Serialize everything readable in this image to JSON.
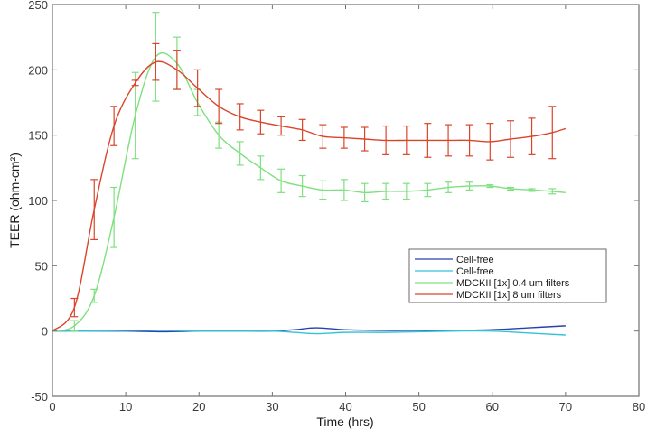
{
  "chart_data": {
    "type": "line",
    "title": "",
    "xlabel": "Time (hrs)",
    "ylabel": "TEER (ohm-cm²)",
    "xlim": [
      0,
      80
    ],
    "ylim": [
      -50,
      250
    ],
    "xticks": [
      0,
      10,
      20,
      30,
      40,
      50,
      60,
      70,
      80
    ],
    "yticks": [
      -50,
      0,
      50,
      100,
      150,
      200,
      250
    ],
    "grid": false,
    "legend_position": "inside lower right",
    "series": [
      {
        "name": "Cell-free",
        "color": "#2b3fb0",
        "error_bars": false,
        "x": [
          0,
          5,
          10,
          15,
          20,
          25,
          30,
          33,
          36,
          40,
          45,
          50,
          55,
          60,
          65,
          70
        ],
        "y": [
          0,
          0,
          0,
          -0.5,
          0,
          0,
          0,
          1,
          2.5,
          1,
          0.5,
          0.5,
          0.5,
          1,
          2.5,
          4
        ]
      },
      {
        "name": "Cell-free",
        "color": "#33c3d6",
        "error_bars": false,
        "x": [
          0,
          5,
          10,
          15,
          20,
          25,
          30,
          33,
          36,
          40,
          45,
          50,
          55,
          60,
          65,
          70
        ],
        "y": [
          0,
          0,
          0.5,
          0.5,
          0,
          0,
          0,
          -1,
          -2,
          -1,
          -1,
          -0.5,
          0,
          0,
          -1.5,
          -3
        ]
      },
      {
        "name": "MDCKII [1x] 0.4 um filters",
        "color": "#7fe07f",
        "error_bars": true,
        "x": [
          0,
          3,
          5.7,
          8.4,
          11.3,
          14.1,
          17,
          19.8,
          22.7,
          25.6,
          28.4,
          31.2,
          34.1,
          36.9,
          39.8,
          42.6,
          45.5,
          48.3,
          51.2,
          54,
          56.9,
          59.7,
          62.5,
          65.4,
          68.2,
          70
        ],
        "y": [
          0,
          4,
          27,
          87,
          165,
          210,
          205,
          175,
          150,
          136,
          125,
          115,
          111,
          108,
          108,
          106,
          107,
          107,
          108,
          110,
          111,
          111,
          109,
          108,
          107,
          106
        ],
        "err": [
          0,
          4,
          5,
          23,
          33,
          34,
          20,
          10,
          10,
          9,
          9,
          9,
          8,
          7,
          8,
          7,
          6,
          6,
          5,
          4,
          3,
          1,
          1,
          1,
          2,
          0
        ]
      },
      {
        "name": "MDCKII [1x] 8 um filters",
        "color": "#d9452b",
        "error_bars": true,
        "x": [
          0,
          3,
          5.7,
          8.4,
          11.3,
          14.1,
          17,
          19.8,
          22.7,
          25.6,
          28.4,
          31.2,
          34.1,
          36.9,
          39.8,
          42.6,
          45.5,
          48.3,
          51.2,
          54,
          56.9,
          59.7,
          62.5,
          65.4,
          68.2,
          70
        ],
        "y": [
          0,
          18,
          93,
          157,
          190,
          206,
          200,
          186,
          172,
          164,
          160,
          157,
          154,
          149,
          148,
          147,
          146,
          146,
          146,
          146,
          146,
          145,
          147,
          149,
          152,
          155
        ],
        "err": [
          0,
          7,
          23,
          15,
          2,
          14,
          15,
          14,
          13,
          10,
          9,
          7,
          8,
          9,
          8,
          9,
          11,
          11,
          13,
          12,
          12,
          14,
          14,
          14,
          20,
          0
        ]
      }
    ]
  },
  "axes": {
    "xlabel": "Time (hrs)",
    "ylabel": "TEER (ohm-cm²)",
    "xtick_labels": [
      "0",
      "10",
      "20",
      "30",
      "40",
      "50",
      "60",
      "70",
      "80"
    ],
    "ytick_labels": [
      "-50",
      "0",
      "50",
      "100",
      "150",
      "200",
      "250"
    ]
  },
  "legend": {
    "entries": [
      {
        "label": "Cell-free",
        "color": "#2b3fb0"
      },
      {
        "label": "Cell-free",
        "color": "#33c3d6"
      },
      {
        "label": "MDCKII [1x] 0.4 um filters",
        "color": "#7fe07f"
      },
      {
        "label": "MDCKII [1x] 8 um filters",
        "color": "#d9452b"
      }
    ]
  }
}
